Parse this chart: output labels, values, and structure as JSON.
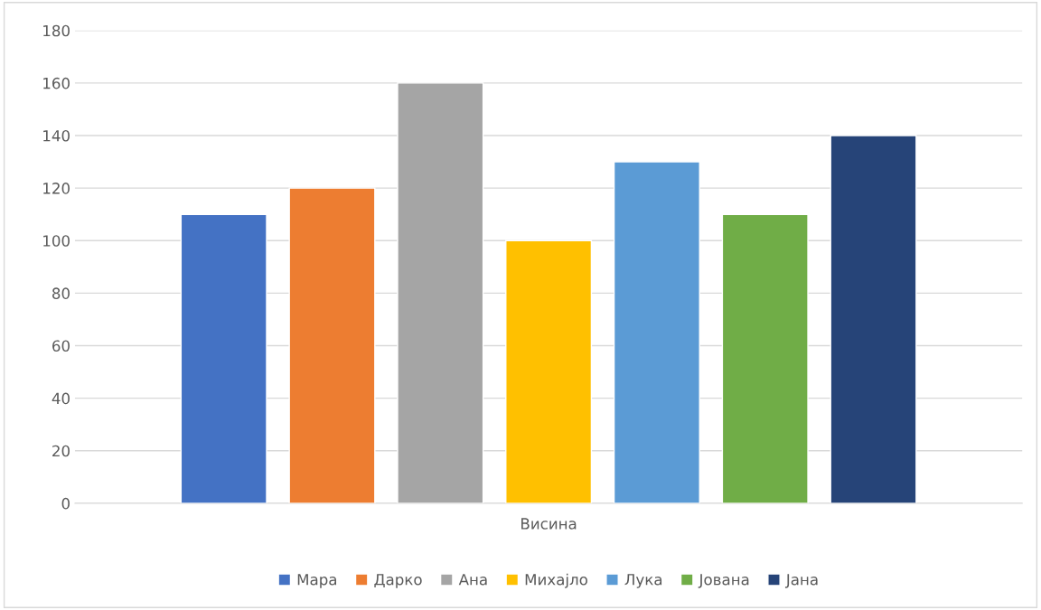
{
  "chart_data": {
    "type": "bar",
    "xlabel": "Висина",
    "categories": [
      null
    ],
    "series": [
      {
        "name": "Мара",
        "color": "#4472c4",
        "values": [
          110
        ]
      },
      {
        "name": "Дарко",
        "color": "#ed7d31",
        "values": [
          120
        ]
      },
      {
        "name": "Ана",
        "color": "#a5a5a5",
        "values": [
          160
        ]
      },
      {
        "name": "Михајло",
        "color": "#ffc000",
        "values": [
          100
        ]
      },
      {
        "name": "Лука",
        "color": "#5b9bd5",
        "values": [
          130
        ]
      },
      {
        "name": "Јована",
        "color": "#70ad47",
        "values": [
          110
        ]
      },
      {
        "name": "Јана",
        "color": "#264478",
        "values": [
          140
        ]
      }
    ],
    "ylim": [
      0,
      180
    ],
    "yticks": [
      0,
      20,
      40,
      60,
      80,
      100,
      120,
      140,
      160,
      180
    ],
    "grid": "y",
    "legend": "bottom"
  }
}
